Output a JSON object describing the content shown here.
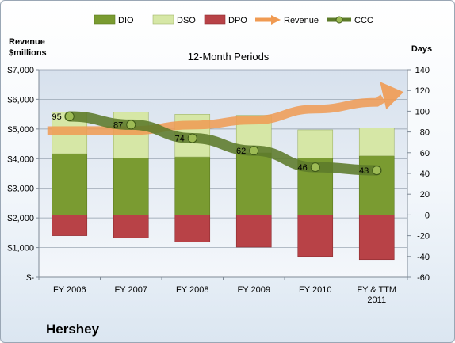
{
  "company": "Hershey",
  "chart_data": {
    "type": "bar",
    "title": "12-Month Periods",
    "ylabel_left": "Revenue\n$millions",
    "ylabel_right": "Days",
    "categories": [
      "FY 2006",
      "FY 2007",
      "FY 2008",
      "FY 2009",
      "FY 2010",
      "FY & TTM\n2011"
    ],
    "left_axis": {
      "ylim": [
        0,
        7000
      ],
      "ticks": [
        0,
        1000,
        2000,
        3000,
        4000,
        5000,
        6000,
        7000
      ],
      "tick_labels": [
        "$-",
        "$1,000",
        "$2,000",
        "$3,000",
        "$4,000",
        "$5,000",
        "$6,000",
        "$7,000"
      ]
    },
    "right_axis": {
      "ylim": [
        -60,
        140
      ],
      "ticks": [
        -60,
        -40,
        -20,
        0,
        20,
        40,
        60,
        80,
        100,
        120,
        140
      ],
      "tick_labels": [
        "-60",
        "-40",
        "-20",
        "0",
        "20",
        "40",
        "60",
        "80",
        "100",
        "120",
        "140"
      ]
    },
    "series": [
      {
        "name": "DIO",
        "axis": "right",
        "type": "stacked-bar",
        "color": "#7a9b31",
        "values": [
          59,
          55,
          56,
          60,
          55,
          57
        ]
      },
      {
        "name": "DSO",
        "axis": "right",
        "type": "stacked-bar",
        "color": "#d6e7a6",
        "values": [
          40,
          44,
          41,
          36,
          27,
          27
        ]
      },
      {
        "name": "DPO",
        "axis": "right",
        "type": "stacked-bar",
        "color": "#b84247",
        "values": [
          -20,
          -22,
          -26,
          -31,
          -40,
          -43
        ]
      },
      {
        "name": "Revenue",
        "axis": "left",
        "type": "arrow-line",
        "color": "#f09a52",
        "values": [
          4944,
          4947,
          5133,
          5299,
          5671,
          5900
        ]
      },
      {
        "name": "CCC",
        "axis": "right",
        "type": "line",
        "color": "#5c7a2a",
        "values": [
          95,
          87,
          74,
          62,
          46,
          43
        ],
        "labels": [
          "95",
          "87",
          "74",
          "62",
          "46",
          "43"
        ]
      }
    ],
    "grid": true,
    "legend_position": "top"
  }
}
